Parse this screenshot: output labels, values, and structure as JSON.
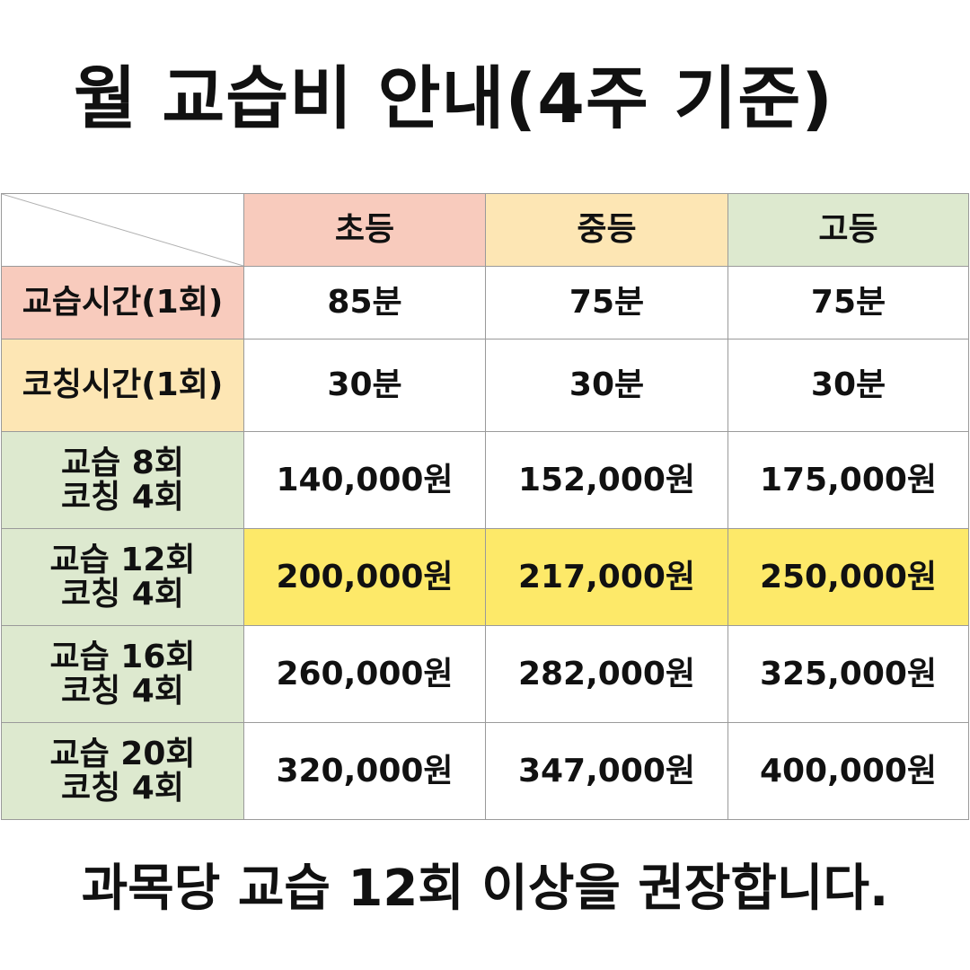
{
  "title": "월 교습비 안내(4주 기준)",
  "table": {
    "columns": [
      "초등",
      "중등",
      "고등"
    ],
    "rows": {
      "lesson_time": {
        "label": "교습시간(1회)",
        "values": [
          "85분",
          "75분",
          "75분"
        ]
      },
      "coaching_time": {
        "label": "코칭시간(1회)",
        "values": [
          "30분",
          "30분",
          "30분"
        ]
      },
      "plans": [
        {
          "line1": "교습 8회",
          "line2": "코칭 4회",
          "values": [
            "140,000원",
            "152,000원",
            "175,000원"
          ],
          "highlight": false
        },
        {
          "line1": "교습 12회",
          "line2": "코칭 4회",
          "values": [
            "200,000원",
            "217,000원",
            "250,000원"
          ],
          "highlight": true
        },
        {
          "line1": "교습 16회",
          "line2": "코칭 4회",
          "values": [
            "260,000원",
            "282,000원",
            "325,000원"
          ],
          "highlight": false
        },
        {
          "line1": "교습 20회",
          "line2": "코칭 4회",
          "values": [
            "320,000원",
            "347,000원",
            "400,000원"
          ],
          "highlight": false
        }
      ]
    }
  },
  "colors": {
    "elementary_header": "#f8cbbd",
    "middle_header": "#fde6b4",
    "high_header": "#dde9cf",
    "highlight_row": "#fde969"
  },
  "footer": "과목당 교습 12회 이상을 권장합니다."
}
